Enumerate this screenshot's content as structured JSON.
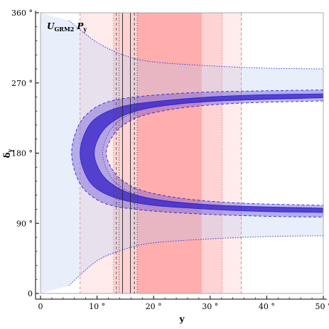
{
  "chart_data": {
    "type": "area",
    "title": "",
    "panel_label": {
      "main": "U",
      "sub": "GRM2",
      "suffix": "P",
      "suffix_sub": "y"
    },
    "xlabel": "y",
    "ylabel": {
      "main": "δ",
      "sub": "y"
    },
    "xlim": [
      0,
      50
    ],
    "ylim": [
      0,
      360
    ],
    "x_ticks": [
      {
        "value": 0,
        "label": "0"
      },
      {
        "value": 10,
        "label": "10 °"
      },
      {
        "value": 20,
        "label": "20 °"
      },
      {
        "value": 30,
        "label": "30 °"
      },
      {
        "value": 40,
        "label": "40 °"
      },
      {
        "value": 50,
        "label": "50 °"
      }
    ],
    "y_ticks": [
      {
        "value": 0,
        "label": "0"
      },
      {
        "value": 90,
        "label": "90 °"
      },
      {
        "value": 180,
        "label": "180 °"
      },
      {
        "value": 270,
        "label": "270 °"
      },
      {
        "value": 360,
        "label": "360 °"
      }
    ],
    "grid": false,
    "vertical_bands": [
      {
        "name": "3sigma",
        "x": [
          7.0,
          35.5
        ],
        "color": "#ffb8b8",
        "opacity": 0.28,
        "edge_style": "dashed"
      },
      {
        "name": "2sigma",
        "x": [
          12.9,
          32.1
        ],
        "color": "#ff9d9d",
        "opacity": 0.3,
        "edge_style": "dotted"
      },
      {
        "name": "1sigma",
        "x": [
          17.2,
          28.5
        ],
        "color": "#ff7a7a",
        "opacity": 0.42,
        "edge_style": "none"
      }
    ],
    "vertical_lines": [
      {
        "x": 13.4,
        "style": "dashed",
        "color": "#555555"
      },
      {
        "x": 13.9,
        "style": "dotted",
        "color": "#555555"
      },
      {
        "x": 14.5,
        "style": "solid",
        "color": "#222222"
      },
      {
        "x": 15.9,
        "style": "solid",
        "color": "#222222"
      },
      {
        "x": 16.6,
        "style": "dashed",
        "color": "#333333"
      },
      {
        "x": 17.1,
        "style": "dotted",
        "color": "#333333"
      }
    ],
    "regions": [
      {
        "name": "3sigma",
        "color": "#b9cbf0",
        "opacity": 0.32,
        "edge_style": "dotted",
        "outer": {
          "vertex_x": 0,
          "upper": [
            [
              0,
              360
            ],
            [
              5,
              350
            ],
            [
              10,
              322
            ],
            [
              15,
              305
            ],
            [
              20,
              297
            ],
            [
              30,
              292
            ],
            [
              40,
              289
            ],
            [
              50,
              288
            ]
          ],
          "lower": [
            [
              0,
              0
            ],
            [
              5,
              10
            ],
            [
              10,
              42
            ],
            [
              15,
              57
            ],
            [
              20,
              65
            ],
            [
              30,
              70
            ],
            [
              40,
              73
            ],
            [
              50,
              74
            ]
          ]
        },
        "inner": {
          "vertex_x": 11.0,
          "upper": [
            [
              11.0,
              180
            ],
            [
              12,
              205
            ],
            [
              14,
              222
            ],
            [
              18,
              236
            ],
            [
              25,
              244
            ],
            [
              35,
              249
            ],
            [
              50,
              251
            ]
          ],
          "lower": [
            [
              11.0,
              180
            ],
            [
              12,
              155
            ],
            [
              14,
              138
            ],
            [
              18,
              124
            ],
            [
              25,
              116
            ],
            [
              35,
              112
            ],
            [
              50,
              110
            ]
          ]
        }
      },
      {
        "name": "2sigma",
        "color": "#6a4bd6",
        "opacity": 0.4,
        "edge_style": "dashed",
        "outer": {
          "vertex_x": 5.5,
          "upper": [
            [
              5.5,
              180
            ],
            [
              6.5,
              212
            ],
            [
              8.5,
              232
            ],
            [
              12,
              246
            ],
            [
              18,
              253
            ],
            [
              28,
              258
            ],
            [
              40,
              260
            ],
            [
              50,
              261
            ]
          ],
          "lower": [
            [
              5.5,
              180
            ],
            [
              6.5,
              148
            ],
            [
              8.5,
              128
            ],
            [
              12,
              114
            ],
            [
              18,
              107
            ],
            [
              28,
              102
            ],
            [
              40,
              99
            ],
            [
              50,
              98
            ]
          ]
        },
        "inner": {
          "vertex_x": 11.6,
          "upper": [
            [
              11.6,
              180
            ],
            [
              12.6,
              200
            ],
            [
              14.5,
              215
            ],
            [
              18,
              228
            ],
            [
              25,
              238
            ],
            [
              35,
              244
            ],
            [
              50,
              247
            ]
          ],
          "lower": [
            [
              11.6,
              180
            ],
            [
              12.6,
              160
            ],
            [
              14.5,
              145
            ],
            [
              18,
              132
            ],
            [
              25,
              122
            ],
            [
              35,
              116
            ],
            [
              50,
              113
            ]
          ]
        }
      },
      {
        "name": "1sigma",
        "color": "#2e19c8",
        "opacity": 0.72,
        "edge_style": "solid",
        "outer": {
          "vertex_x": 7.0,
          "upper": [
            [
              7.0,
              180
            ],
            [
              8,
              208
            ],
            [
              10,
              226
            ],
            [
              14,
              239
            ],
            [
              20,
              246
            ],
            [
              30,
              252
            ],
            [
              40,
              255
            ],
            [
              50,
              256
            ]
          ],
          "lower": [
            [
              7.0,
              180
            ],
            [
              8,
              152
            ],
            [
              10,
              134
            ],
            [
              14,
              121
            ],
            [
              20,
              113
            ],
            [
              30,
              108
            ],
            [
              40,
              105
            ],
            [
              50,
              104
            ]
          ]
        },
        "inner": {
          "vertex_x": 9.5,
          "upper": [
            [
              9.5,
              180
            ],
            [
              10.5,
              203
            ],
            [
              12.5,
              219
            ],
            [
              16,
              232
            ],
            [
              22,
              241
            ],
            [
              32,
              247
            ],
            [
              50,
              251
            ]
          ],
          "lower": [
            [
              9.5,
              180
            ],
            [
              10.5,
              157
            ],
            [
              12.5,
              141
            ],
            [
              16,
              128
            ],
            [
              22,
              119
            ],
            [
              32,
              113
            ],
            [
              50,
              109
            ]
          ]
        }
      }
    ]
  }
}
